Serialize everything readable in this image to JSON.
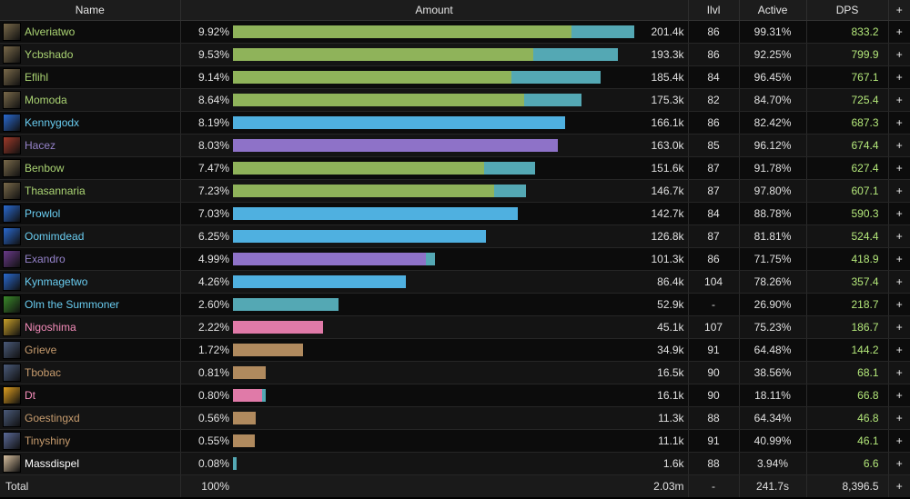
{
  "header": {
    "name": "Name",
    "amount": "Amount",
    "ilvl": "Ilvl",
    "active": "Active",
    "dps": "DPS",
    "plus": "+"
  },
  "colors": {
    "hunter": "#8fb35a",
    "hunter_pet": "#54a8b4",
    "mage": "#4fb0e0",
    "warlock": "#8e72c8",
    "shaman": "#3f9fc8",
    "paladin": "#e07aa8",
    "warrior": "#b08a5e"
  },
  "rows": [
    {
      "name": "Alveriatwo",
      "name_color": "#abd473",
      "icon": "hunter-icon",
      "icon_color": "#7a6a4a",
      "pct": "9.92%",
      "pct_value": 9.92,
      "amount": "201.4k",
      "ilvl": "86",
      "active": "99.31%",
      "dps": "833.2",
      "bar": [
        {
          "c": "hunter",
          "v": 0.837
        },
        {
          "c": "hunter_pet",
          "v": 0.155
        }
      ]
    },
    {
      "name": "Ycbshado",
      "name_color": "#abd473",
      "icon": "hunter-icon",
      "icon_color": "#7a6a4a",
      "pct": "9.53%",
      "pct_value": 9.53,
      "amount": "193.3k",
      "ilvl": "86",
      "active": "92.25%",
      "dps": "799.9",
      "bar": [
        {
          "c": "hunter",
          "v": 0.742
        },
        {
          "c": "hunter_pet",
          "v": 0.21
        }
      ]
    },
    {
      "name": "Eflihl",
      "name_color": "#abd473",
      "icon": "hunter-icon",
      "icon_color": "#7a6a4a",
      "pct": "9.14%",
      "pct_value": 9.14,
      "amount": "185.4k",
      "ilvl": "84",
      "active": "96.45%",
      "dps": "767.1",
      "bar": [
        {
          "c": "hunter",
          "v": 0.688
        },
        {
          "c": "hunter_pet",
          "v": 0.22
        }
      ]
    },
    {
      "name": "Momoda",
      "name_color": "#abd473",
      "icon": "hunter-icon",
      "icon_color": "#7a6a4a",
      "pct": "8.64%",
      "pct_value": 8.64,
      "amount": "175.3k",
      "ilvl": "82",
      "active": "84.70%",
      "dps": "725.4",
      "bar": [
        {
          "c": "hunter",
          "v": 0.72
        },
        {
          "c": "hunter_pet",
          "v": 0.142
        }
      ]
    },
    {
      "name": "Kennygodx",
      "name_color": "#69ccf0",
      "icon": "mage-icon",
      "icon_color": "#2a6ad0",
      "pct": "8.19%",
      "pct_value": 8.19,
      "amount": "166.1k",
      "ilvl": "86",
      "active": "82.42%",
      "dps": "687.3",
      "bar": [
        {
          "c": "mage",
          "v": 0.82
        }
      ]
    },
    {
      "name": "Hacez",
      "name_color": "#9482c9",
      "icon": "warlock-icon",
      "icon_color": "#a03a2a",
      "pct": "8.03%",
      "pct_value": 8.03,
      "amount": "163.0k",
      "ilvl": "85",
      "active": "96.12%",
      "dps": "674.4",
      "bar": [
        {
          "c": "warlock",
          "v": 0.803
        }
      ]
    },
    {
      "name": "Benbow",
      "name_color": "#abd473",
      "icon": "hunter-icon",
      "icon_color": "#7a6a4a",
      "pct": "7.47%",
      "pct_value": 7.47,
      "amount": "151.6k",
      "ilvl": "87",
      "active": "91.78%",
      "dps": "627.4",
      "bar": [
        {
          "c": "hunter",
          "v": 0.62
        },
        {
          "c": "hunter_pet",
          "v": 0.126
        }
      ]
    },
    {
      "name": "Thasannaria",
      "name_color": "#abd473",
      "icon": "hunter-icon",
      "icon_color": "#7a6a4a",
      "pct": "7.23%",
      "pct_value": 7.23,
      "amount": "146.7k",
      "ilvl": "87",
      "active": "97.80%",
      "dps": "607.1",
      "bar": [
        {
          "c": "hunter",
          "v": 0.645
        },
        {
          "c": "hunter_pet",
          "v": 0.078
        }
      ]
    },
    {
      "name": "Prowlol",
      "name_color": "#69ccf0",
      "icon": "mage-icon",
      "icon_color": "#2a6ad0",
      "pct": "7.03%",
      "pct_value": 7.03,
      "amount": "142.7k",
      "ilvl": "84",
      "active": "88.78%",
      "dps": "590.3",
      "bar": [
        {
          "c": "mage",
          "v": 0.703
        }
      ]
    },
    {
      "name": "Oomimdead",
      "name_color": "#69ccf0",
      "icon": "mage-icon",
      "icon_color": "#2a6ad0",
      "pct": "6.25%",
      "pct_value": 6.25,
      "amount": "126.8k",
      "ilvl": "87",
      "active": "81.81%",
      "dps": "524.4",
      "bar": [
        {
          "c": "mage",
          "v": 0.625
        }
      ]
    },
    {
      "name": "Exandro",
      "name_color": "#9482c9",
      "icon": "warlock-icon",
      "icon_color": "#6a3a8a",
      "pct": "4.99%",
      "pct_value": 4.99,
      "amount": "101.3k",
      "ilvl": "86",
      "active": "71.75%",
      "dps": "418.9",
      "bar": [
        {
          "c": "warlock",
          "v": 0.477
        },
        {
          "c": "hunter_pet",
          "v": 0.022
        }
      ]
    },
    {
      "name": "Kynmagetwo",
      "name_color": "#69ccf0",
      "icon": "mage-icon",
      "icon_color": "#2a6ad0",
      "pct": "4.26%",
      "pct_value": 4.26,
      "amount": "86.4k",
      "ilvl": "104",
      "active": "78.26%",
      "dps": "357.4",
      "bar": [
        {
          "c": "mage",
          "v": 0.426
        }
      ]
    },
    {
      "name": "Olm the Summoner",
      "name_color": "#69ccf0",
      "icon": "shaman-icon",
      "icon_color": "#3a8a2a",
      "pct": "2.60%",
      "pct_value": 2.6,
      "amount": "52.9k",
      "ilvl": "-",
      "active": "26.90%",
      "dps": "218.7",
      "bar": [
        {
          "c": "hunter_pet",
          "v": 0.26
        }
      ]
    },
    {
      "name": "Nigoshima",
      "name_color": "#f58cba",
      "icon": "paladin-icon",
      "icon_color": "#c8a02a",
      "pct": "2.22%",
      "pct_value": 2.22,
      "amount": "45.1k",
      "ilvl": "107",
      "active": "75.23%",
      "dps": "186.7",
      "bar": [
        {
          "c": "paladin",
          "v": 0.222
        }
      ]
    },
    {
      "name": "Grieve",
      "name_color": "#c79c6e",
      "icon": "warrior-icon",
      "icon_color": "#4a5a7a",
      "pct": "1.72%",
      "pct_value": 1.72,
      "amount": "34.9k",
      "ilvl": "91",
      "active": "64.48%",
      "dps": "144.2",
      "bar": [
        {
          "c": "warrior",
          "v": 0.172
        }
      ]
    },
    {
      "name": "Tbobac",
      "name_color": "#c79c6e",
      "icon": "warrior-icon",
      "icon_color": "#4a5a7a",
      "pct": "0.81%",
      "pct_value": 0.81,
      "amount": "16.5k",
      "ilvl": "90",
      "active": "38.56%",
      "dps": "68.1",
      "bar": [
        {
          "c": "warrior",
          "v": 0.081
        }
      ]
    },
    {
      "name": "Dt",
      "name_color": "#f58cba",
      "icon": "paladin-icon",
      "icon_color": "#e0a020",
      "pct": "0.80%",
      "pct_value": 0.8,
      "amount": "16.1k",
      "ilvl": "90",
      "active": "18.11%",
      "dps": "66.8",
      "bar": [
        {
          "c": "paladin",
          "v": 0.072
        },
        {
          "c": "hunter_pet",
          "v": 0.008
        }
      ]
    },
    {
      "name": "Goestingxd",
      "name_color": "#c79c6e",
      "icon": "warrior-icon",
      "icon_color": "#4a5a7a",
      "pct": "0.56%",
      "pct_value": 0.56,
      "amount": "11.3k",
      "ilvl": "88",
      "active": "64.34%",
      "dps": "46.8",
      "bar": [
        {
          "c": "warrior",
          "v": 0.056
        }
      ]
    },
    {
      "name": "Tinyshiny",
      "name_color": "#c79c6e",
      "icon": "warrior-icon",
      "icon_color": "#5a6a9a",
      "pct": "0.55%",
      "pct_value": 0.55,
      "amount": "11.1k",
      "ilvl": "91",
      "active": "40.99%",
      "dps": "46.1",
      "bar": [
        {
          "c": "warrior",
          "v": 0.055
        }
      ]
    },
    {
      "name": "Massdispel",
      "name_color": "#ffffff",
      "icon": "priest-icon",
      "icon_color": "#d8c0a0",
      "pct": "0.08%",
      "pct_value": 0.08,
      "amount": "1.6k",
      "ilvl": "88",
      "active": "3.94%",
      "dps": "6.6",
      "bar": [
        {
          "c": "hunter_pet",
          "v": 0.008
        }
      ]
    }
  ],
  "total": {
    "label": "Total",
    "pct": "100%",
    "amount": "2.03m",
    "ilvl": "-",
    "active": "241.7s",
    "dps": "8,396.5",
    "plus": "+"
  }
}
